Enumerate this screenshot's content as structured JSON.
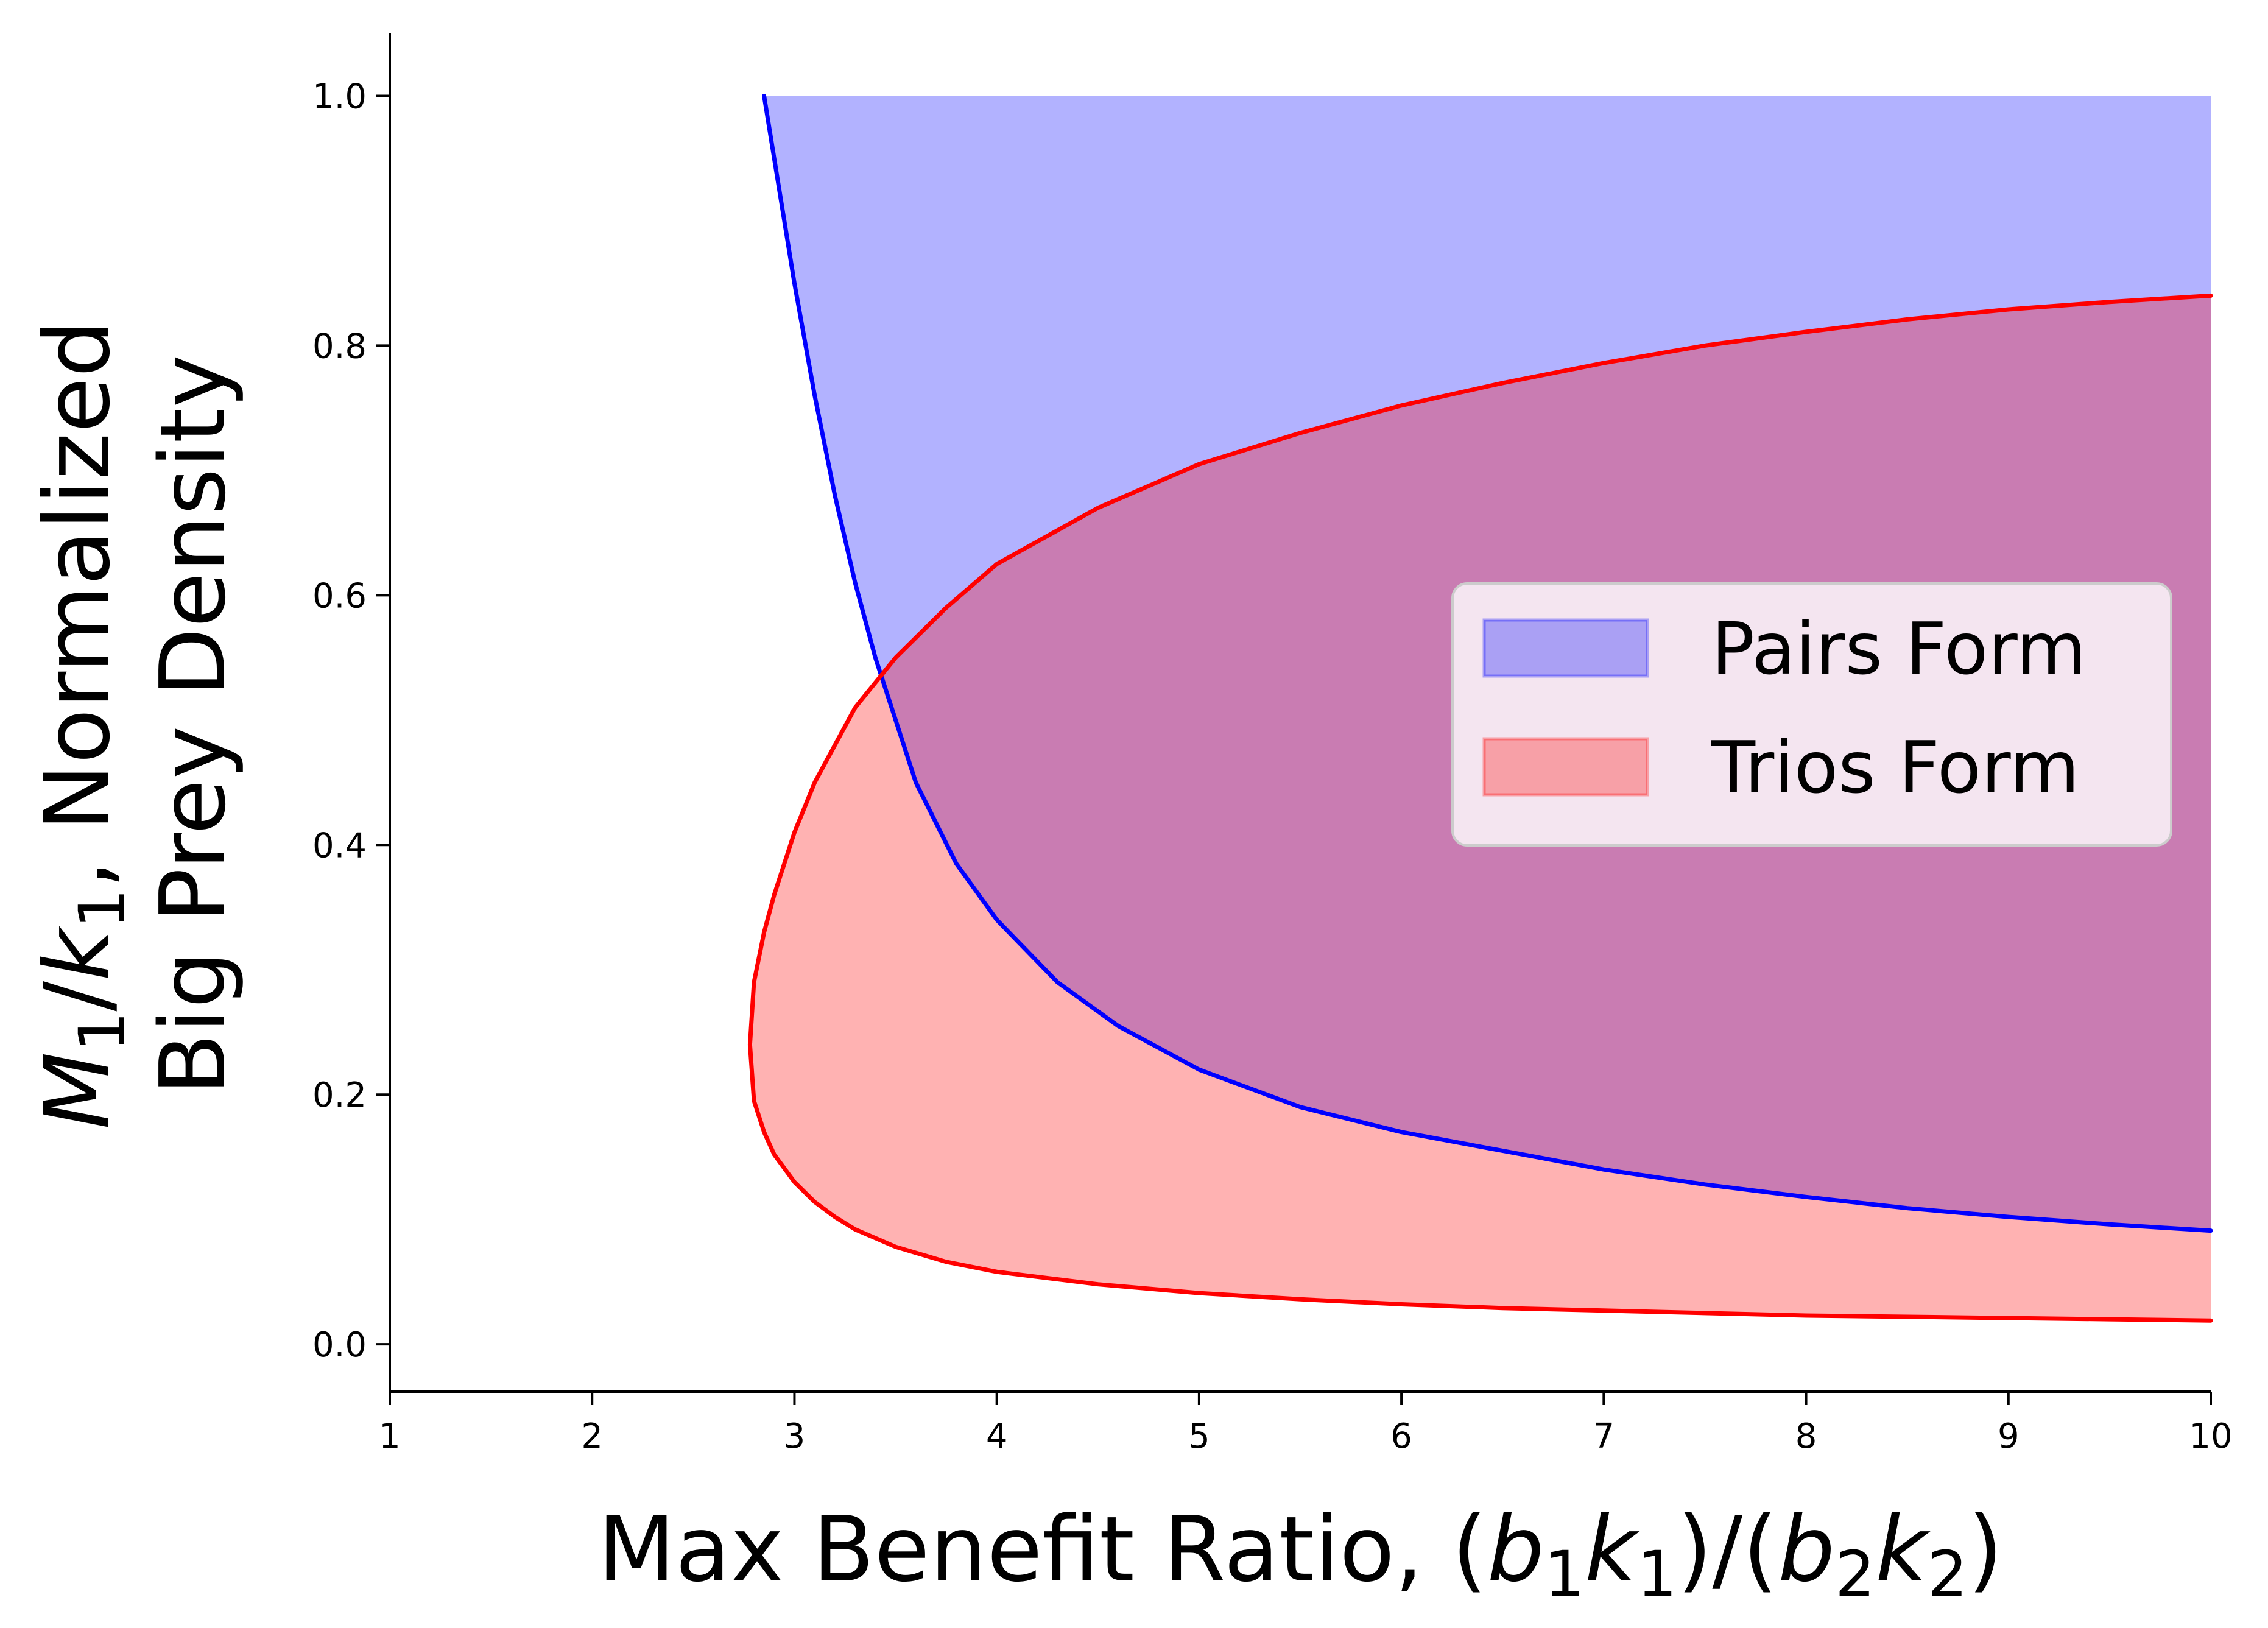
{
  "chart_data": {
    "type": "area",
    "xlabel_parts": [
      {
        "t": "Max Benefit Ratio, ("
      },
      {
        "t": "b",
        "i": true
      },
      {
        "t": "1",
        "s": true
      },
      {
        "t": "k",
        "i": true
      },
      {
        "t": "1",
        "s": true
      },
      {
        "t": ")/("
      },
      {
        "t": "b",
        "i": true
      },
      {
        "t": "2",
        "s": true
      },
      {
        "t": "k",
        "i": true
      },
      {
        "t": "2",
        "s": true
      },
      {
        "t": ")"
      }
    ],
    "ylabel_line1_parts": [
      {
        "t": "M",
        "i": true
      },
      {
        "t": "1",
        "s": true
      },
      {
        "t": "/"
      },
      {
        "t": "k",
        "i": true
      },
      {
        "t": "1",
        "s": true
      },
      {
        "t": ", Normalized"
      }
    ],
    "ylabel_line2": "Big Prey Density",
    "xlim": [
      1,
      10
    ],
    "ylim": [
      -0.038,
      1.05
    ],
    "xticks": [
      1,
      2,
      3,
      4,
      5,
      6,
      7,
      8,
      9,
      10
    ],
    "xtick_labels": [
      "1",
      "2",
      "3",
      "4",
      "5",
      "6",
      "7",
      "8",
      "9",
      "10"
    ],
    "yticks": [
      0.0,
      0.2,
      0.4,
      0.6,
      0.8,
      1.0
    ],
    "ytick_labels": [
      "0.0",
      "0.2",
      "0.4",
      "0.6",
      "0.8",
      "1.0"
    ],
    "legend_position": "center-right",
    "grid": false,
    "series": [
      {
        "name": "Pairs Form",
        "fill": "#0000ff",
        "fill_opacity": 0.3,
        "edge": "#0000ff",
        "x": [
          2.85,
          2.9,
          3.0,
          3.1,
          3.2,
          3.3,
          3.4,
          3.5,
          3.6,
          3.8,
          4.0,
          4.3,
          4.6,
          5.0,
          5.5,
          6.0,
          6.5,
          7.0,
          7.5,
          8.0,
          8.5,
          9.0,
          9.5,
          10.0
        ],
        "lower": [
          1.0,
          0.95,
          0.85,
          0.76,
          0.68,
          0.61,
          0.55,
          0.5,
          0.45,
          0.385,
          0.34,
          0.29,
          0.255,
          0.22,
          0.19,
          0.17,
          0.155,
          0.14,
          0.128,
          0.118,
          0.109,
          0.102,
          0.096,
          0.091
        ],
        "upper": [
          1.0,
          1.0,
          1.0,
          1.0,
          1.0,
          1.0,
          1.0,
          1.0,
          1.0,
          1.0,
          1.0,
          1.0,
          1.0,
          1.0,
          1.0,
          1.0,
          1.0,
          1.0,
          1.0,
          1.0,
          1.0,
          1.0,
          1.0,
          1.0
        ]
      },
      {
        "name": "Trios Form",
        "fill": "#ff0000",
        "fill_opacity": 0.3,
        "edge": "#ff0000",
        "x": [
          2.78,
          2.8,
          2.85,
          2.9,
          3.0,
          3.1,
          3.2,
          3.3,
          3.5,
          3.75,
          4.0,
          4.5,
          5.0,
          5.5,
          6.0,
          6.5,
          7.0,
          7.5,
          8.0,
          8.5,
          9.0,
          9.5,
          10.0
        ],
        "lower": [
          0.24,
          0.195,
          0.17,
          0.152,
          0.13,
          0.114,
          0.102,
          0.092,
          0.078,
          0.066,
          0.058,
          0.048,
          0.041,
          0.036,
          0.032,
          0.029,
          0.027,
          0.025,
          0.023,
          0.022,
          0.021,
          0.02,
          0.019
        ],
        "upper": [
          0.24,
          0.29,
          0.33,
          0.36,
          0.41,
          0.45,
          0.48,
          0.51,
          0.55,
          0.59,
          0.625,
          0.67,
          0.705,
          0.73,
          0.752,
          0.77,
          0.786,
          0.8,
          0.811,
          0.821,
          0.829,
          0.835,
          0.84
        ]
      }
    ]
  }
}
